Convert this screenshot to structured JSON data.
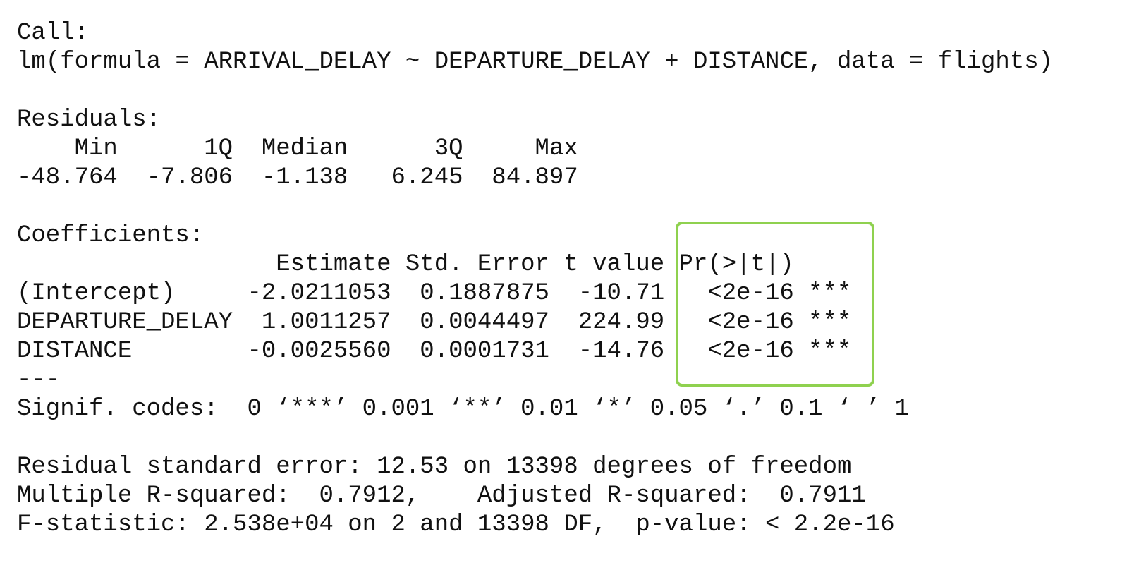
{
  "call": {
    "label": "Call:",
    "formula": "lm(formula = ARRIVAL_DELAY ~ DEPARTURE_DELAY + DISTANCE, data = flights)"
  },
  "residuals": {
    "label": "Residuals:",
    "header": "    Min      1Q  Median      3Q     Max",
    "values": "-48.764  -7.806  -1.138   6.245  84.897"
  },
  "coefficients": {
    "label": "Coefficients:",
    "header": "                  Estimate Std. Error t value Pr(>|t|)",
    "rows": [
      "(Intercept)     -2.0211053  0.1887875  -10.71   <2e-16 ***",
      "DEPARTURE_DELAY  1.0011257  0.0044497  224.99   <2e-16 ***",
      "DISTANCE        -0.0025560  0.0001731  -14.76   <2e-16 ***"
    ],
    "separator": "---",
    "signif_codes": "Signif. codes:  0 ‘***’ 0.001 ‘**’ 0.01 ‘*’ 0.05 ‘.’ 0.1 ‘ ’ 1"
  },
  "summary": [
    "Residual standard error: 12.53 on 13398 degrees of freedom",
    "Multiple R-squared:  0.7912,    Adjusted R-squared:  0.7911",
    "F-statistic: 2.538e+04 on 2 and 13398 DF,  p-value: < 2.2e-16"
  ]
}
